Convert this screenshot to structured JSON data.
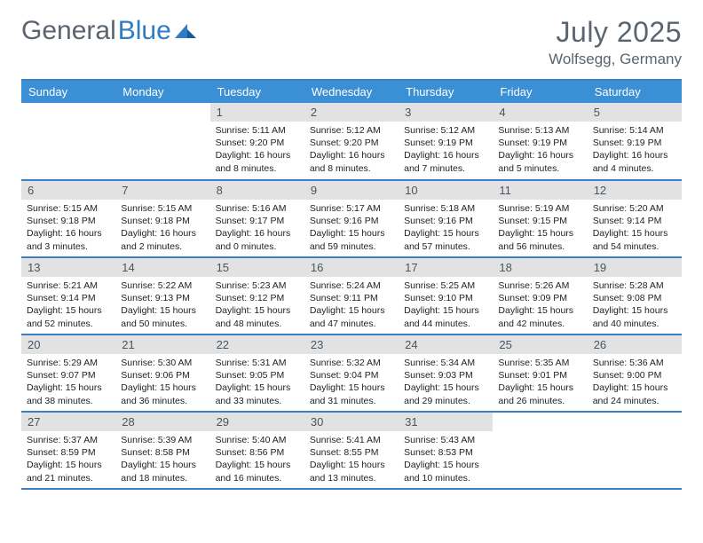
{
  "logo": {
    "part1": "General",
    "part2": "Blue"
  },
  "title": "July 2025",
  "location": "Wolfsegg, Germany",
  "colors": {
    "header_bg": "#3b8fd4",
    "border": "#3b7fc4",
    "daynum_bg": "#e2e2e2",
    "text": "#5a6570"
  },
  "dayHeaders": [
    "Sunday",
    "Monday",
    "Tuesday",
    "Wednesday",
    "Thursday",
    "Friday",
    "Saturday"
  ],
  "startOffset": 2,
  "days": [
    {
      "n": 1,
      "sr": "5:11 AM",
      "ss": "9:20 PM",
      "dl": "16 hours and 8 minutes."
    },
    {
      "n": 2,
      "sr": "5:12 AM",
      "ss": "9:20 PM",
      "dl": "16 hours and 8 minutes."
    },
    {
      "n": 3,
      "sr": "5:12 AM",
      "ss": "9:19 PM",
      "dl": "16 hours and 7 minutes."
    },
    {
      "n": 4,
      "sr": "5:13 AM",
      "ss": "9:19 PM",
      "dl": "16 hours and 5 minutes."
    },
    {
      "n": 5,
      "sr": "5:14 AM",
      "ss": "9:19 PM",
      "dl": "16 hours and 4 minutes."
    },
    {
      "n": 6,
      "sr": "5:15 AM",
      "ss": "9:18 PM",
      "dl": "16 hours and 3 minutes."
    },
    {
      "n": 7,
      "sr": "5:15 AM",
      "ss": "9:18 PM",
      "dl": "16 hours and 2 minutes."
    },
    {
      "n": 8,
      "sr": "5:16 AM",
      "ss": "9:17 PM",
      "dl": "16 hours and 0 minutes."
    },
    {
      "n": 9,
      "sr": "5:17 AM",
      "ss": "9:16 PM",
      "dl": "15 hours and 59 minutes."
    },
    {
      "n": 10,
      "sr": "5:18 AM",
      "ss": "9:16 PM",
      "dl": "15 hours and 57 minutes."
    },
    {
      "n": 11,
      "sr": "5:19 AM",
      "ss": "9:15 PM",
      "dl": "15 hours and 56 minutes."
    },
    {
      "n": 12,
      "sr": "5:20 AM",
      "ss": "9:14 PM",
      "dl": "15 hours and 54 minutes."
    },
    {
      "n": 13,
      "sr": "5:21 AM",
      "ss": "9:14 PM",
      "dl": "15 hours and 52 minutes."
    },
    {
      "n": 14,
      "sr": "5:22 AM",
      "ss": "9:13 PM",
      "dl": "15 hours and 50 minutes."
    },
    {
      "n": 15,
      "sr": "5:23 AM",
      "ss": "9:12 PM",
      "dl": "15 hours and 48 minutes."
    },
    {
      "n": 16,
      "sr": "5:24 AM",
      "ss": "9:11 PM",
      "dl": "15 hours and 47 minutes."
    },
    {
      "n": 17,
      "sr": "5:25 AM",
      "ss": "9:10 PM",
      "dl": "15 hours and 44 minutes."
    },
    {
      "n": 18,
      "sr": "5:26 AM",
      "ss": "9:09 PM",
      "dl": "15 hours and 42 minutes."
    },
    {
      "n": 19,
      "sr": "5:28 AM",
      "ss": "9:08 PM",
      "dl": "15 hours and 40 minutes."
    },
    {
      "n": 20,
      "sr": "5:29 AM",
      "ss": "9:07 PM",
      "dl": "15 hours and 38 minutes."
    },
    {
      "n": 21,
      "sr": "5:30 AM",
      "ss": "9:06 PM",
      "dl": "15 hours and 36 minutes."
    },
    {
      "n": 22,
      "sr": "5:31 AM",
      "ss": "9:05 PM",
      "dl": "15 hours and 33 minutes."
    },
    {
      "n": 23,
      "sr": "5:32 AM",
      "ss": "9:04 PM",
      "dl": "15 hours and 31 minutes."
    },
    {
      "n": 24,
      "sr": "5:34 AM",
      "ss": "9:03 PM",
      "dl": "15 hours and 29 minutes."
    },
    {
      "n": 25,
      "sr": "5:35 AM",
      "ss": "9:01 PM",
      "dl": "15 hours and 26 minutes."
    },
    {
      "n": 26,
      "sr": "5:36 AM",
      "ss": "9:00 PM",
      "dl": "15 hours and 24 minutes."
    },
    {
      "n": 27,
      "sr": "5:37 AM",
      "ss": "8:59 PM",
      "dl": "15 hours and 21 minutes."
    },
    {
      "n": 28,
      "sr": "5:39 AM",
      "ss": "8:58 PM",
      "dl": "15 hours and 18 minutes."
    },
    {
      "n": 29,
      "sr": "5:40 AM",
      "ss": "8:56 PM",
      "dl": "15 hours and 16 minutes."
    },
    {
      "n": 30,
      "sr": "5:41 AM",
      "ss": "8:55 PM",
      "dl": "15 hours and 13 minutes."
    },
    {
      "n": 31,
      "sr": "5:43 AM",
      "ss": "8:53 PM",
      "dl": "15 hours and 10 minutes."
    }
  ],
  "labels": {
    "sunrise": "Sunrise:",
    "sunset": "Sunset:",
    "daylight": "Daylight:"
  }
}
